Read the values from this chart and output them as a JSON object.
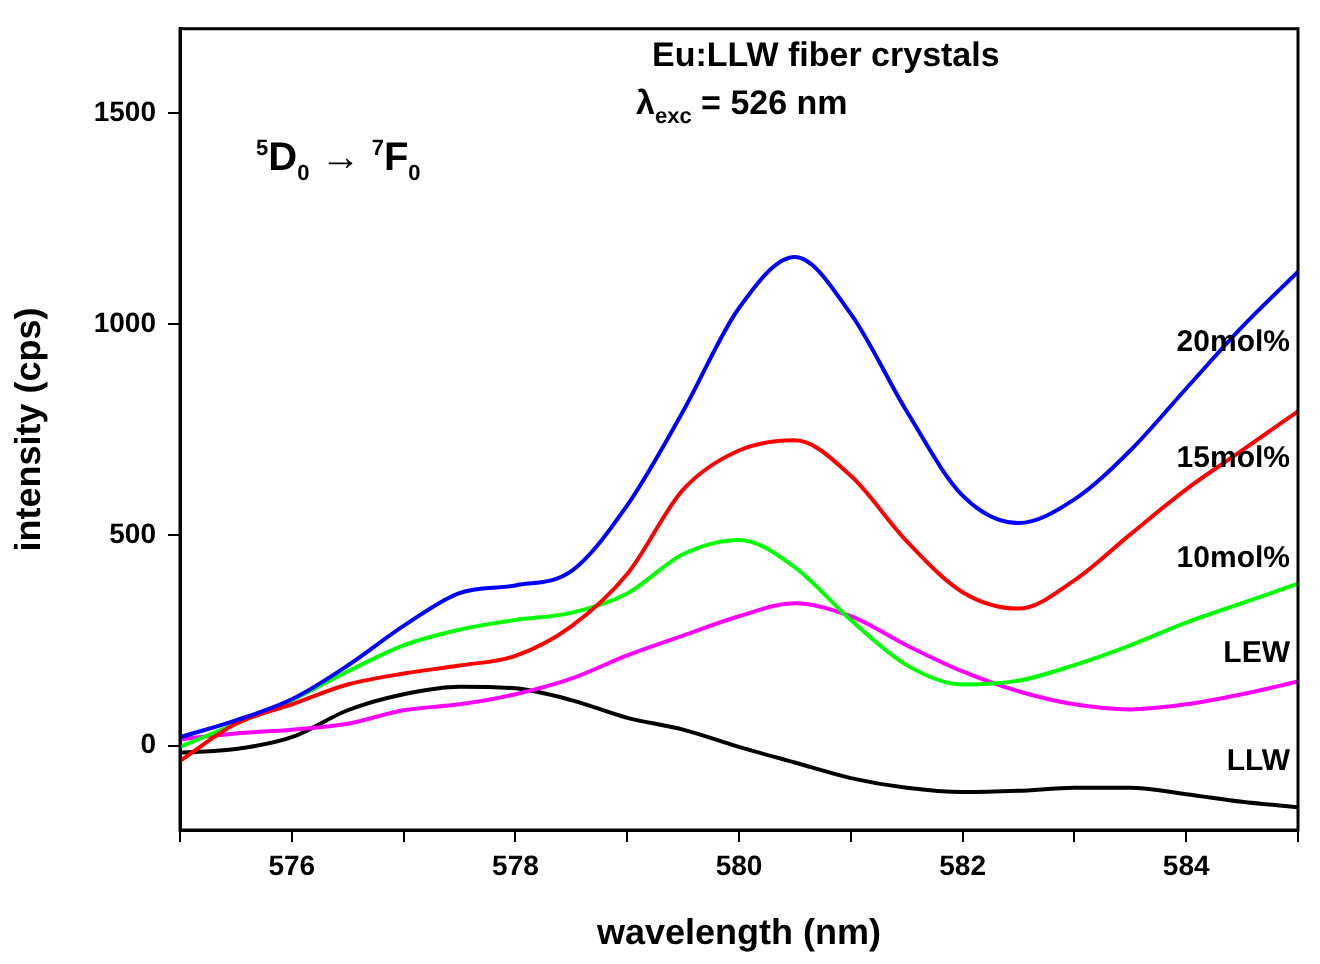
{
  "chart_data": {
    "type": "line",
    "xlabel": "wavelength (nm)",
    "ylabel": "intensity (cps)",
    "xlim": [
      575,
      585
    ],
    "ylim": [
      -200,
      1700
    ],
    "xticks": [
      {
        "value": 575,
        "label": null
      },
      576,
      {
        "value": 577,
        "label": null
      },
      578,
      {
        "value": 579,
        "label": null
      },
      580,
      {
        "value": 581,
        "label": null
      },
      582,
      {
        "value": 583,
        "label": null
      },
      584,
      {
        "value": 585,
        "label": null
      }
    ],
    "yticks": [
      0,
      500,
      1000,
      1500
    ],
    "legend": false,
    "grid": false,
    "marker": "none",
    "line_style": "solid",
    "annotations": [
      "Eu:LLW fiber crystals",
      "λ$_{exc}$ = 526 nm",
      "$^{5}$D$_{0}$ → $^{7}$F$_{0}$"
    ],
    "x": [
      575,
      575.5,
      576,
      576.5,
      577,
      577.5,
      578,
      578.5,
      579,
      579.5,
      580,
      580.5,
      581,
      581.5,
      582,
      582.5,
      583,
      583.5,
      584,
      584.5,
      585
    ],
    "series": [
      {
        "name": "20mol%",
        "color": "#0000ff",
        "values": [
          20,
          60,
          110,
          190,
          284,
          362,
          380,
          414,
          570,
          793,
          1038,
          1159,
          1024,
          793,
          593,
          528,
          584,
          700,
          847,
          993,
          1124
        ]
      },
      {
        "name": "15mol%",
        "color": "#ff0000",
        "values": [
          -36,
          52,
          98,
          145,
          171,
          190,
          213,
          283,
          407,
          607,
          700,
          724,
          640,
          485,
          364,
          325,
          392,
          501,
          608,
          700,
          793
        ]
      },
      {
        "name": "10mol%",
        "color": "#00ff00",
        "values": [
          -3,
          52,
          108,
          176,
          238,
          275,
          298,
          315,
          361,
          454,
          488,
          423,
          298,
          191,
          145,
          154,
          191,
          238,
          292,
          338,
          384
        ]
      },
      {
        "name": "LEW",
        "color": "#ff00ff",
        "values": [
          15,
          29,
          38,
          52,
          84,
          98,
          122,
          159,
          214,
          261,
          307,
          338,
          307,
          238,
          176,
          129,
          98,
          86,
          98,
          122,
          152
        ]
      },
      {
        "name": "LLW",
        "color": "#000000",
        "values": [
          -17,
          -8,
          20,
          84,
          122,
          140,
          136,
          108,
          66,
          38,
          -3,
          -40,
          -77,
          -100,
          -110,
          -107,
          -100,
          -100,
          -115,
          -133,
          -146
        ]
      }
    ]
  }
}
